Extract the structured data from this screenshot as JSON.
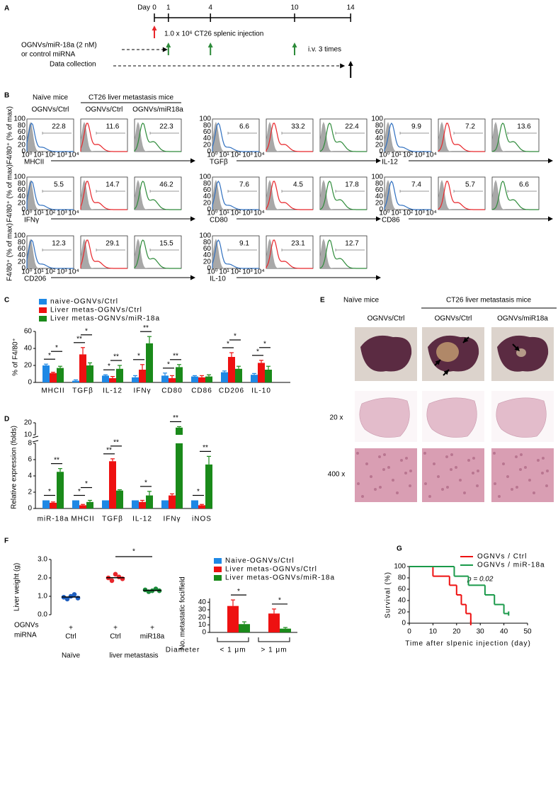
{
  "panel_labels": [
    "A",
    "B",
    "C",
    "D",
    "E",
    "F",
    "G"
  ],
  "timeline": {
    "day_label": "Day",
    "days": [
      0,
      1,
      4,
      10,
      14
    ],
    "injection_label": "1.0 x 10⁶ CT26 splenic injection",
    "injection_day": 0,
    "treatment_label": [
      "OGNVs/miR-18a (2 nM)",
      "or control miRNA"
    ],
    "treatment_days": [
      1,
      4,
      10
    ],
    "treatment_note": "i.v. 3 times",
    "collection_label": "Data collection",
    "collection_day": 14
  },
  "flow": {
    "header_1": "Naïve mice",
    "header_2": "CT26 liver metastasis mice",
    "column_labels": [
      "OGNVs/Ctrl",
      "OGNVs/Ctrl",
      "OGNVs/miR18a"
    ],
    "colors": [
      "#2f6fbf",
      "#e8262b",
      "#2e8b3a"
    ],
    "ylabel": "F4/80⁺ (% of max)",
    "yticks": [
      100,
      80,
      60,
      40,
      20,
      0
    ],
    "xticks": [
      "10⁰",
      "10¹",
      "10²",
      "10³",
      "10⁴"
    ],
    "rows": [
      [
        {
          "marker": "MHCII",
          "gates": [
            22.8,
            11.6,
            22.3
          ]
        },
        {
          "marker": "TGFβ",
          "gates": [
            6.6,
            33.2,
            22.4
          ]
        },
        {
          "marker": "IL-12",
          "gates": [
            9.9,
            7.2,
            13.6
          ]
        }
      ],
      [
        {
          "marker": "IFNγ",
          "gates": [
            5.5,
            14.7,
            46.2
          ]
        },
        {
          "marker": "CD80",
          "gates": [
            7.6,
            4.5,
            17.8
          ]
        },
        {
          "marker": "CD86",
          "gates": [
            7.4,
            5.7,
            6.6
          ]
        }
      ],
      [
        {
          "marker": "CD206",
          "gates": [
            12.3,
            29.1,
            15.5
          ]
        },
        {
          "marker": "IL-10",
          "gates": [
            9.1,
            23.1,
            12.7
          ]
        }
      ]
    ]
  },
  "histology": {
    "header_1": "Naïve mice",
    "header_2": "CT26 liver metastasis mice",
    "column_labels": [
      "OGNVs/Ctrl",
      "OGNVs/Ctrl",
      "OGNVs/miR18a"
    ],
    "row_labels": [
      "20 x",
      "400 x"
    ]
  },
  "chart_data": [
    {
      "type": "bar",
      "ylabel": "% of F4/80⁺",
      "categories": [
        "MHCII",
        "TGFβ",
        "IL-12",
        "IFNγ",
        "CD80",
        "CD86",
        "CD206",
        "IL-10"
      ],
      "ylim": [
        0,
        60
      ],
      "yticks": [
        0,
        20,
        40,
        60
      ],
      "series": [
        {
          "name": "naive-OGNVs/Ctrl",
          "color": "#1e88e5",
          "values": [
            20,
            2,
            8,
            6,
            8,
            7,
            12,
            9
          ],
          "errors": [
            1.5,
            1,
            1,
            2,
            3,
            1,
            1.5,
            1.5
          ]
        },
        {
          "name": "Liver metas-OGNVs/Ctrl",
          "color": "#ee1111",
          "values": [
            11,
            33,
            5,
            15,
            5,
            6,
            30,
            23
          ],
          "errors": [
            1,
            8,
            2,
            6,
            3,
            2,
            5,
            3
          ]
        },
        {
          "name": "Liver metas-OGNVs/miR-18a",
          "color": "#1a8a1a",
          "values": [
            17,
            20,
            16,
            46,
            18,
            7,
            16,
            15
          ],
          "errors": [
            2,
            3,
            4,
            8,
            3,
            2,
            3,
            4
          ]
        }
      ],
      "significance": [
        {
          "naive_vs_ctrl": "*",
          "ctrl_vs_mir": "*"
        },
        {
          "naive_vs_ctrl": "**",
          "ctrl_vs_mir": "*"
        },
        {
          "naive_vs_ctrl": "*",
          "ctrl_vs_mir": "**"
        },
        {
          "naive_vs_ctrl": "*",
          "ctrl_vs_mir": "**"
        },
        {
          "naive_vs_ctrl": "*",
          "ctrl_vs_mir": "**"
        },
        {},
        {
          "naive_vs_ctrl": "*",
          "ctrl_vs_mir": "*"
        },
        {
          "naive_vs_ctrl": "*",
          "ctrl_vs_mir": "*"
        }
      ]
    },
    {
      "type": "bar",
      "ylabel": "Relative expression (folds)",
      "categories": [
        "miR-18a",
        "MHCII",
        "TGFβ",
        "IL-12",
        "IFNγ",
        "iNOS"
      ],
      "ylim": [
        0,
        20
      ],
      "axis_break": [
        8,
        10
      ],
      "yticks": [
        0,
        2,
        4,
        6,
        8,
        10,
        20
      ],
      "series": [
        {
          "color": "#1e88e5",
          "values": [
            1,
            1,
            1,
            1,
            1,
            1
          ]
        },
        {
          "color": "#ee1111",
          "values": [
            0.7,
            0.4,
            5.8,
            0.8,
            1.6,
            0.4
          ],
          "errors": [
            0.1,
            0.1,
            0.3,
            0.2,
            0.2,
            0.1
          ]
        },
        {
          "color": "#1a8a1a",
          "values": [
            4.5,
            0.8,
            2.2,
            1.6,
            16,
            5.4
          ],
          "errors": [
            0.4,
            0.2,
            0.1,
            0.5,
            0.8,
            1
          ]
        }
      ],
      "significance": [
        {
          "naive_vs_ctrl": "*",
          "ctrl_vs_mir": "**"
        },
        {
          "naive_vs_ctrl": "*",
          "ctrl_vs_mir": "*"
        },
        {
          "naive_vs_ctrl": "**",
          "ctrl_vs_mir": "**"
        },
        {
          "ctrl_vs_mir": "*"
        },
        {
          "ctrl_vs_mir": "**"
        },
        {
          "naive_vs_ctrl": "*",
          "ctrl_vs_mir": "**"
        }
      ]
    },
    {
      "type": "dot",
      "ylabel": "Liver weight (g)",
      "ylim": [
        0,
        3
      ],
      "yticks": [
        {
          "value": 0,
          "label": "0.0"
        },
        {
          "value": 1,
          "label": "1.0"
        },
        {
          "value": 2,
          "label": "2.0"
        },
        {
          "value": 3,
          "label": "3.0"
        }
      ],
      "series": [
        {
          "color": "#1f5fbf",
          "values": [
            0.95,
            0.85,
            1.0,
            1.1,
            0.9
          ]
        },
        {
          "color": "#e8262b",
          "values": [
            2.0,
            1.85,
            2.2,
            2.05,
            1.95
          ]
        },
        {
          "color": "#1a8a3a",
          "values": [
            1.35,
            1.25,
            1.3,
            1.4,
            1.3
          ]
        }
      ],
      "means": [
        0.96,
        2.01,
        1.32
      ],
      "significance": "*",
      "table": {
        "row_labels": [
          "OGNVs",
          "miRNA"
        ],
        "ognvs": [
          "+",
          "+",
          "+"
        ],
        "mirna": [
          "Ctrl",
          "Ctrl",
          "miR18a"
        ],
        "groups": [
          "Naïve",
          "liver metastasis"
        ]
      }
    },
    {
      "type": "bar",
      "ylabel": "No. metastatic foci/field",
      "xlabel": "Diameter",
      "categories": [
        "< 1 μm",
        "> 1 μm"
      ],
      "ylim": [
        0,
        45
      ],
      "yticks": [
        0,
        10,
        20,
        30,
        40
      ],
      "series": [
        {
          "name": "Naive-OGNVs/Ctrl",
          "color": "#1e88e5",
          "values": [
            0,
            0
          ]
        },
        {
          "name": "Liver metas-OGNVs/Ctrl",
          "color": "#ee1111",
          "values": [
            35,
            25
          ],
          "errors": [
            8,
            6
          ]
        },
        {
          "name": "Liver metas-OGNVs/miR-18a",
          "color": "#1a8a1a",
          "values": [
            11,
            5
          ],
          "errors": [
            3,
            1.5
          ]
        }
      ],
      "significance": [
        {
          "ctrl_vs_mir": "*"
        },
        {
          "ctrl_vs_mir": "*"
        }
      ]
    },
    {
      "type": "line",
      "ylabel": "Survival (%)",
      "xlabel": "Time after slpenic injection (day)",
      "annotation": "p = 0.02",
      "xlim": [
        0,
        50
      ],
      "xticks": [
        0,
        10,
        20,
        30,
        40,
        50
      ],
      "ylim": [
        0,
        100
      ],
      "yticks": [
        0,
        20,
        40,
        60,
        80,
        100
      ],
      "series": [
        {
          "name": "OGNVs / Ctrl",
          "color": "#ee1111",
          "x": [
            0,
            10,
            17,
            20,
            22,
            24,
            26
          ],
          "values": [
            100,
            83,
            67,
            50,
            33,
            17,
            0
          ]
        },
        {
          "name": "OGNVs / miR-18a",
          "color": "#1a9a4a",
          "x": [
            0,
            19,
            25,
            32,
            36,
            40,
            42
          ],
          "values": [
            100,
            83,
            67,
            50,
            33,
            17,
            17
          ]
        }
      ]
    }
  ]
}
